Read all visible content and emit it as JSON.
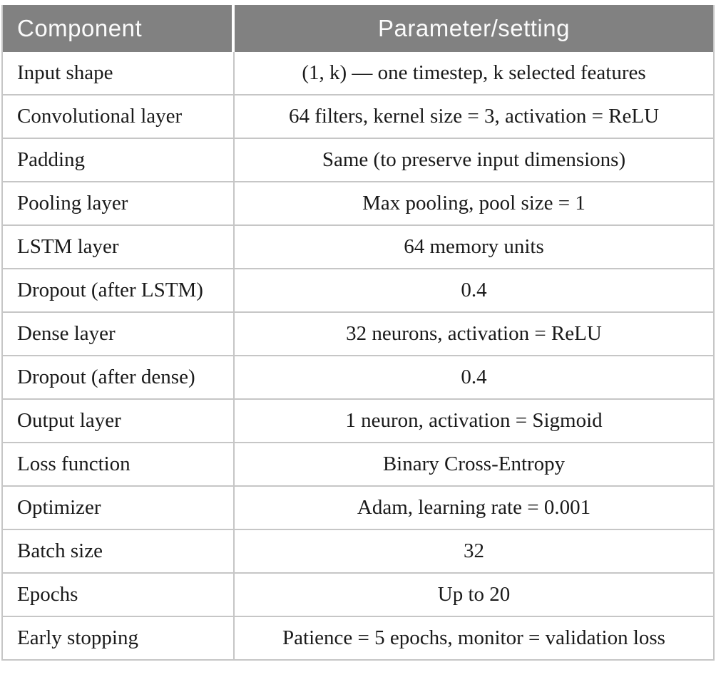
{
  "table": {
    "columns": [
      {
        "label": "Component"
      },
      {
        "label": "Parameter/setting"
      }
    ],
    "rows": [
      {
        "component": "Input shape",
        "setting": "(1, k) — one timestep, k selected features"
      },
      {
        "component": "Convolutional layer",
        "setting": "64 filters, kernel size = 3, activation = ReLU"
      },
      {
        "component": "Padding",
        "setting": "Same (to preserve input dimensions)"
      },
      {
        "component": "Pooling layer",
        "setting": "Max pooling, pool size = 1"
      },
      {
        "component": "LSTM layer",
        "setting": "64 memory units"
      },
      {
        "component": "Dropout (after LSTM)",
        "setting": "0.4"
      },
      {
        "component": "Dense layer",
        "setting": "32 neurons, activation = ReLU"
      },
      {
        "component": "Dropout (after dense)",
        "setting": "0.4"
      },
      {
        "component": "Output layer",
        "setting": "1 neuron, activation = Sigmoid"
      },
      {
        "component": "Loss function",
        "setting": "Binary Cross-Entropy"
      },
      {
        "component": "Optimizer",
        "setting": "Adam, learning rate = 0.001"
      },
      {
        "component": "Batch size",
        "setting": "32"
      },
      {
        "component": "Epochs",
        "setting": "Up to 20"
      },
      {
        "component": "Early stopping",
        "setting": "Patience = 5 epochs, monitor = validation loss"
      }
    ]
  },
  "colors": {
    "header_bg": "#818181",
    "header_text": "#fbfbfb",
    "body_text": "#1a1a1a",
    "divider": "#c6c6c6",
    "page_bg": "#ffffff"
  }
}
